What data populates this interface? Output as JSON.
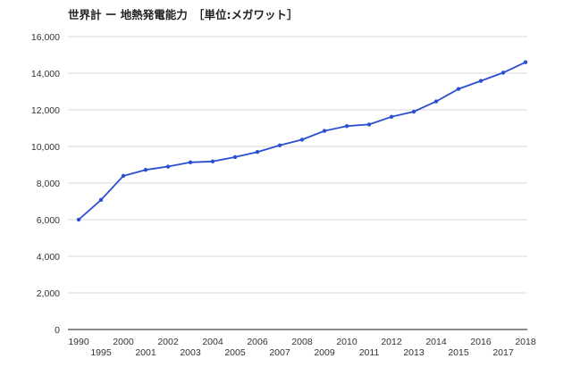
{
  "chart_data": {
    "type": "line",
    "title": "世界計 ー 地熱発電能力　［単位:メガワット］",
    "xlabel": "",
    "ylabel": "",
    "x": [
      1990,
      1995,
      2000,
      2001,
      2002,
      2003,
      2004,
      2005,
      2006,
      2007,
      2008,
      2009,
      2010,
      2011,
      2012,
      2013,
      2014,
      2015,
      2016,
      2017,
      2018
    ],
    "series": [
      {
        "values": [
          6000,
          7080,
          8390,
          8720,
          8900,
          9130,
          9180,
          9420,
          9700,
          10060,
          10370,
          10850,
          11110,
          11200,
          11620,
          11900,
          12460,
          13140,
          13580,
          14030,
          14600
        ]
      }
    ],
    "ylim": [
      0,
      16000
    ],
    "yticks": [
      "0",
      "2,000",
      "4,000",
      "6,000",
      "8,000",
      "10,000",
      "12,000",
      "14,000",
      "16,000"
    ],
    "xtick_labels": [
      "1990",
      "1995",
      "2000",
      "2001",
      "2002",
      "2003",
      "2004",
      "2005",
      "2006",
      "2007",
      "2008",
      "2009",
      "2010",
      "2011",
      "2012",
      "2013",
      "2014",
      "2015",
      "2016",
      "2017",
      "2018"
    ],
    "grid": true,
    "legend": "none",
    "colors": {
      "line": "#2b4fd1",
      "grid": "#d9d9d9",
      "axis": "#444444"
    }
  }
}
